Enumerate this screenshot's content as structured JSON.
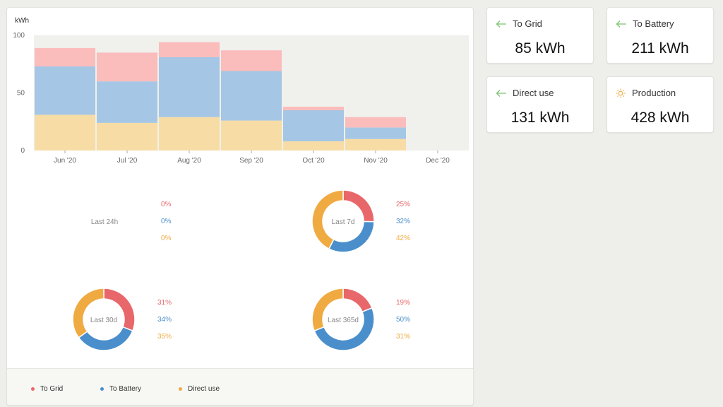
{
  "colors": {
    "grid": "#e8676a",
    "battery": "#4a8fcb",
    "direct": "#f0aa42",
    "grid_bar": "#fbbcbc",
    "battery_bar": "#a5c7e5",
    "direct_bar": "#f7dca5",
    "plot_bg": "#f0f0ec"
  },
  "chart_data": {
    "type": "bar",
    "stacked": true,
    "ylabel": "kWh",
    "ylim": [
      0,
      100
    ],
    "yticks": [
      "0",
      "50",
      "100"
    ],
    "categories": [
      "Jun '20",
      "Jul '20",
      "Aug '20",
      "Sep '20",
      "Oct '20",
      "Nov '20",
      "Dec '20"
    ],
    "series": [
      {
        "name": "Direct use",
        "values": [
          31,
          24,
          29,
          26,
          8,
          10,
          0
        ]
      },
      {
        "name": "To Battery",
        "values": [
          42,
          36,
          52,
          43,
          27,
          10,
          0
        ]
      },
      {
        "name": "To Grid",
        "values": [
          16,
          25,
          13,
          18,
          3,
          9,
          0
        ]
      }
    ],
    "legend_position": "bottom"
  },
  "donuts": [
    {
      "label": "Last 24h",
      "grid": "0%",
      "battery": "0%",
      "direct": "0%",
      "values": [
        0,
        0,
        0
      ]
    },
    {
      "label": "Last 7d",
      "grid": "25%",
      "battery": "32%",
      "direct": "42%",
      "values": [
        25,
        32,
        42
      ]
    },
    {
      "label": "Last 30d",
      "grid": "31%",
      "battery": "34%",
      "direct": "35%",
      "values": [
        31,
        34,
        35
      ]
    },
    {
      "label": "Last 365d",
      "grid": "19%",
      "battery": "50%",
      "direct": "31%",
      "values": [
        19,
        50,
        31
      ]
    }
  ],
  "legend": {
    "grid": "To Grid",
    "battery": "To Battery",
    "direct": "Direct use"
  },
  "stats": [
    {
      "label": "To Grid",
      "value": "85 kWh",
      "icon": "arrow-left-icon"
    },
    {
      "label": "To Battery",
      "value": "211 kWh",
      "icon": "arrow-left-icon"
    },
    {
      "label": "Direct use",
      "value": "131 kWh",
      "icon": "arrow-left-icon"
    },
    {
      "label": "Production",
      "value": "428 kWh",
      "icon": "sun-icon"
    }
  ]
}
